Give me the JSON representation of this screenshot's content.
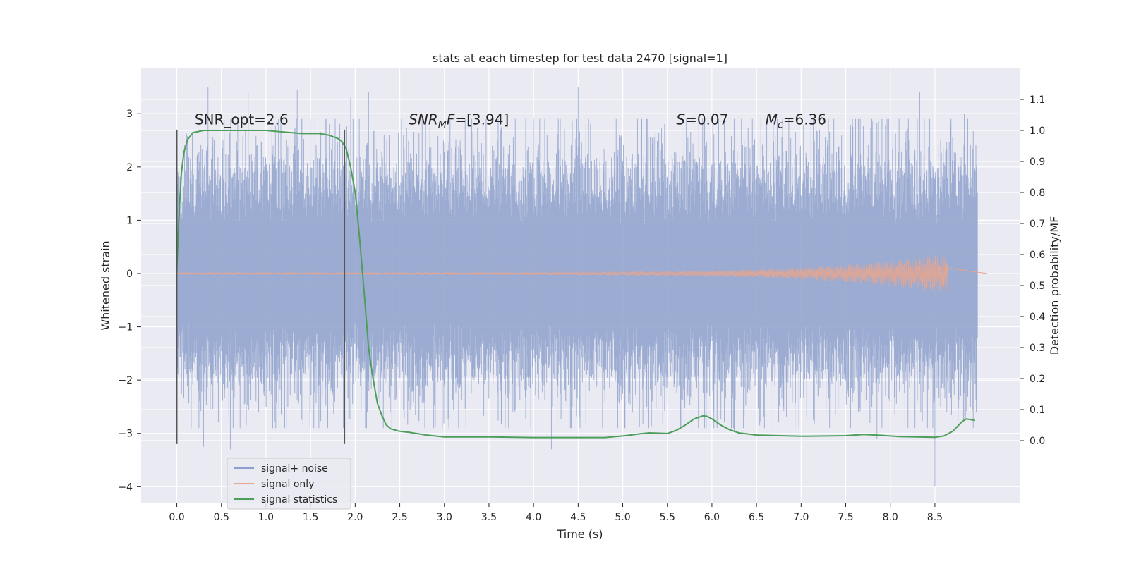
{
  "chart_data": {
    "type": "line",
    "title": "stats at each timestep for test data 2470 [signal=1]",
    "xlabel": "Time (s)",
    "ylabel": "Whitened strain",
    "ylabel_right": "Detection probability/MF",
    "xlim": [
      -0.4,
      9.45
    ],
    "ylim": [
      -4.3,
      3.85
    ],
    "ylim_right": [
      -0.2,
      1.2
    ],
    "x_ticks": [
      0.0,
      0.5,
      1.0,
      1.5,
      2.0,
      2.5,
      3.0,
      3.5,
      4.0,
      4.5,
      5.0,
      5.5,
      6.0,
      6.5,
      7.0,
      7.5,
      8.0,
      8.5
    ],
    "x_tick_labels": [
      "0.0",
      "0.5",
      "1.0",
      "1.5",
      "2.0",
      "2.5",
      "3.0",
      "3.5",
      "4.0",
      "4.5",
      "5.0",
      "5.5",
      "6.0",
      "6.5",
      "7.0",
      "7.5",
      "8.0",
      "8.5"
    ],
    "y_ticks": [
      -4,
      -3,
      -2,
      -1,
      0,
      1,
      2,
      3
    ],
    "y_tick_labels": [
      "−4",
      "−3",
      "−2",
      "−1",
      "0",
      "1",
      "2",
      "3"
    ],
    "y_ticks_right": [
      0.0,
      0.1,
      0.2,
      0.3,
      0.4,
      0.5,
      0.6,
      0.7,
      0.8,
      0.9,
      1.0,
      1.1
    ],
    "y_tick_labels_right": [
      "0.0",
      "0.1",
      "0.2",
      "0.3",
      "0.4",
      "0.5",
      "0.6",
      "0.7",
      "0.8",
      "0.9",
      "1.0",
      "1.1"
    ],
    "grid": true,
    "legend_position": "lower-left",
    "series": [
      {
        "name": "signal+ noise",
        "axis": "left",
        "color": "#8da0cb",
        "style": "noise",
        "x_range": [
          0.0,
          8.98
        ],
        "core_amplitude": 1.0,
        "peaks": [
          {
            "x": 0.35,
            "y": 3.5
          },
          {
            "x": 0.8,
            "y": 3.4
          },
          {
            "x": 1.35,
            "y": 3.45
          },
          {
            "x": 1.95,
            "y": 3.3
          },
          {
            "x": 2.15,
            "y": 3.4
          },
          {
            "x": 4.5,
            "y": 3.5
          },
          {
            "x": 8.33,
            "y": 3.4
          },
          {
            "x": 8.83,
            "y": 3.0
          },
          {
            "x": 0.6,
            "y": -3.3
          },
          {
            "x": 4.2,
            "y": -3.3
          },
          {
            "x": 8.5,
            "y": -4.0
          },
          {
            "x": 0.3,
            "y": -3.25
          },
          {
            "x": 7.85,
            "y": -3.1
          },
          {
            "x": 6.25,
            "y": -2.95
          }
        ]
      },
      {
        "name": "signal only",
        "axis": "left",
        "color": "#e5a58f",
        "style": "chirp",
        "x_range": [
          0.0,
          8.65
        ],
        "amplitude_end": 0.35
      },
      {
        "name": "signal statistics",
        "axis": "right",
        "color": "#4c9e5a",
        "style": "line",
        "x": [
          0.0,
          0.02,
          0.05,
          0.08,
          0.12,
          0.18,
          0.3,
          0.5,
          0.8,
          1.0,
          1.2,
          1.4,
          1.6,
          1.7,
          1.8,
          1.85,
          1.9,
          1.95,
          2.0,
          2.05,
          2.1,
          2.15,
          2.2,
          2.25,
          2.3,
          2.35,
          2.4,
          2.5,
          2.6,
          2.8,
          3.0,
          3.5,
          4.0,
          4.5,
          4.8,
          5.0,
          5.2,
          5.3,
          5.5,
          5.6,
          5.7,
          5.8,
          5.9,
          5.95,
          6.0,
          6.1,
          6.2,
          6.3,
          6.5,
          7.0,
          7.5,
          7.7,
          7.9,
          8.1,
          8.3,
          8.5,
          8.6,
          8.7,
          8.8,
          8.85,
          8.9,
          8.95
        ],
        "y": [
          0.55,
          0.7,
          0.86,
          0.93,
          0.97,
          0.993,
          1.0,
          1.0,
          1.0,
          1.0,
          0.995,
          0.99,
          0.99,
          0.985,
          0.975,
          0.965,
          0.94,
          0.88,
          0.8,
          0.65,
          0.48,
          0.3,
          0.2,
          0.12,
          0.08,
          0.05,
          0.038,
          0.03,
          0.027,
          0.018,
          0.012,
          0.012,
          0.01,
          0.01,
          0.01,
          0.015,
          0.022,
          0.025,
          0.023,
          0.033,
          0.05,
          0.07,
          0.08,
          0.078,
          0.07,
          0.05,
          0.035,
          0.025,
          0.018,
          0.014,
          0.016,
          0.02,
          0.017,
          0.013,
          0.012,
          0.011,
          0.015,
          0.03,
          0.06,
          0.07,
          0.068,
          0.065
        ]
      }
    ],
    "vertical_lines": [
      {
        "x": 0.0,
        "y0": -3.2,
        "y1": 2.7
      },
      {
        "x": 1.88,
        "y0": -3.2,
        "y1": 2.7
      }
    ],
    "annotations": [
      {
        "id": "snr-opt",
        "text": "SNR_opt=2.6",
        "x": 0.2,
        "y": 2.8
      },
      {
        "id": "snr-mf",
        "text": "SNR_MF=[3.94]",
        "x": 2.6,
        "y": 2.8
      },
      {
        "id": "spin",
        "text": "S=0.07",
        "x": 5.6,
        "y": 2.8
      },
      {
        "id": "chirp-mass",
        "text": "M_c=6.36",
        "x": 6.6,
        "y": 2.8
      }
    ]
  }
}
